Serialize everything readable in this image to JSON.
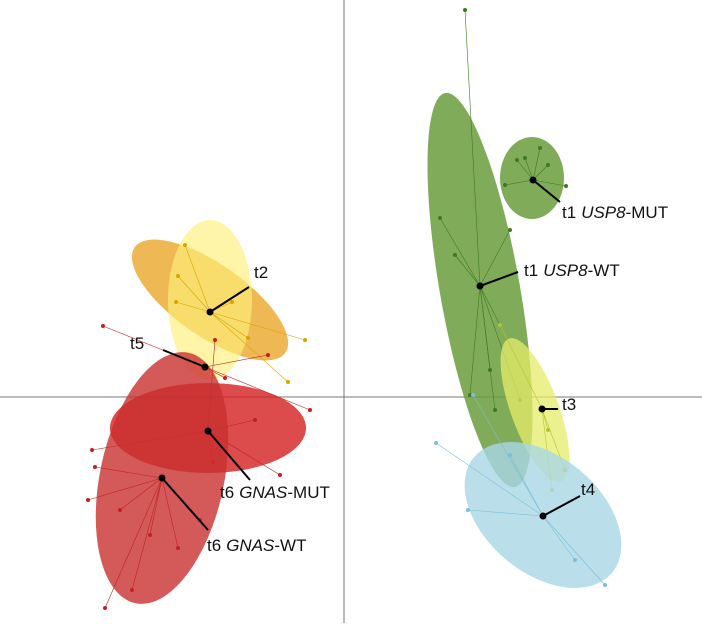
{
  "groups": [
    {
      "label": [
        "t1",
        "USP8",
        "-WT"
      ]
    },
    {
      "label": [
        "t1",
        "USP8",
        "-MUT"
      ]
    },
    {
      "label": [
        "t2"
      ]
    },
    {
      "label": [
        "t5"
      ]
    },
    {
      "label": [
        "t6",
        "GNAS",
        "-MUT"
      ]
    },
    {
      "label": [
        "t6",
        "GNAS",
        "-WT"
      ]
    },
    {
      "label": [
        "t3"
      ]
    },
    {
      "label": [
        "t4"
      ]
    }
  ]
}
